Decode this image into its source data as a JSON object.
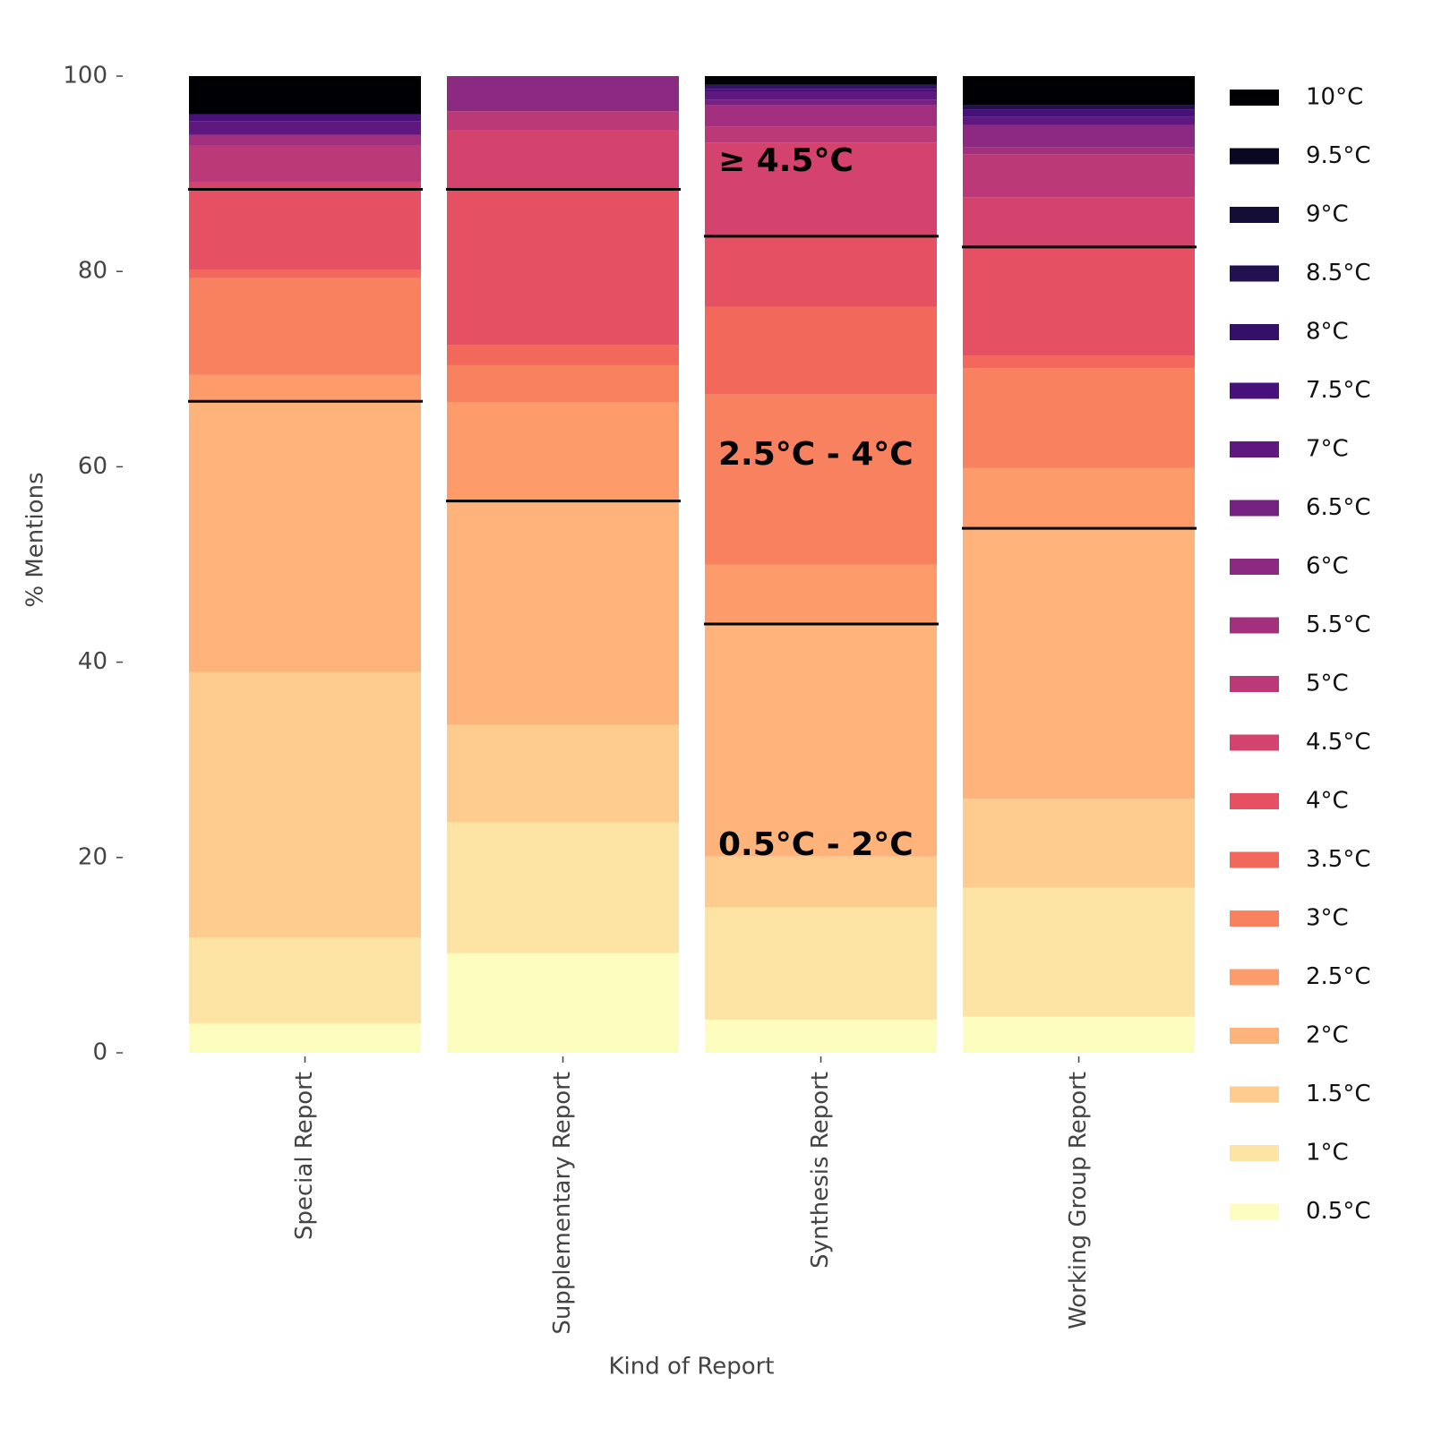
{
  "chart_data": {
    "type": "stacked_bar",
    "x_label": "Kind of Report",
    "y_label": "% Mentions",
    "categories": [
      "Special Report",
      "Supplementary Report",
      "Synthesis Report",
      "Working Group Report"
    ],
    "ylim": [
      0,
      100
    ],
    "yticks": [
      0,
      20,
      40,
      60,
      80,
      100
    ],
    "annotations": [
      "≥ 4.5°C",
      "2.5°C - 4°C",
      "0.5°C - 2°C"
    ],
    "series": [
      {
        "name": "0.5°C",
        "color": "#fcfdbf",
        "values": [
          3.0,
          10.2,
          3.4,
          3.7
        ]
      },
      {
        "name": "1°C",
        "color": "#fde4a5",
        "values": [
          8.8,
          13.4,
          11.5,
          13.2
        ]
      },
      {
        "name": "1.5°C",
        "color": "#fecc8f",
        "values": [
          27.2,
          10.0,
          5.2,
          9.1
        ]
      },
      {
        "name": "2°C",
        "color": "#feb37b",
        "values": [
          27.7,
          22.9,
          23.8,
          27.7
        ]
      },
      {
        "name": "2.5°C",
        "color": "#fd9b6b",
        "values": [
          2.7,
          10.1,
          6.1,
          6.2
        ]
      },
      {
        "name": "3°C",
        "color": "#f8825f",
        "values": [
          9.9,
          3.8,
          17.4,
          10.2
        ]
      },
      {
        "name": "3.5°C",
        "color": "#f2695c",
        "values": [
          0.9,
          2.1,
          9.0,
          1.3
        ]
      },
      {
        "name": "4°C",
        "color": "#e55063",
        "values": [
          8.2,
          15.9,
          7.2,
          11.1
        ]
      },
      {
        "name": "4.5°C",
        "color": "#d3436e",
        "values": [
          0.7,
          6.1,
          9.6,
          5.1
        ]
      },
      {
        "name": "5°C",
        "color": "#bc3977",
        "values": [
          3.8,
          1.9,
          1.6,
          4.4
        ]
      },
      {
        "name": "5.5°C",
        "color": "#a3307e",
        "values": [
          1.1,
          0,
          2.2,
          0.7
        ]
      },
      {
        "name": "6°C",
        "color": "#8c2981",
        "values": [
          0,
          3.6,
          0,
          2.3
        ]
      },
      {
        "name": "6.5°C",
        "color": "#742181",
        "values": [
          0,
          0,
          0.6,
          0
        ]
      },
      {
        "name": "7°C",
        "color": "#5f187f",
        "values": [
          1.4,
          0,
          0.8,
          0.8
        ]
      },
      {
        "name": "7.5°C",
        "color": "#47107a",
        "values": [
          0.7,
          0,
          0.3,
          0.8
        ]
      },
      {
        "name": "8°C",
        "color": "#341068",
        "values": [
          0,
          0,
          0.4,
          0
        ]
      },
      {
        "name": "8.5°C",
        "color": "#221150",
        "values": [
          0,
          0,
          0,
          0.4
        ]
      },
      {
        "name": "9°C",
        "color": "#140e36",
        "values": [
          0,
          0,
          0,
          0
        ]
      },
      {
        "name": "9.5°C",
        "color": "#0a0722",
        "values": [
          0,
          0,
          0,
          0
        ]
      },
      {
        "name": "10°C",
        "color": "#000004",
        "values": [
          3.9,
          0,
          0.9,
          3.0
        ]
      }
    ]
  }
}
